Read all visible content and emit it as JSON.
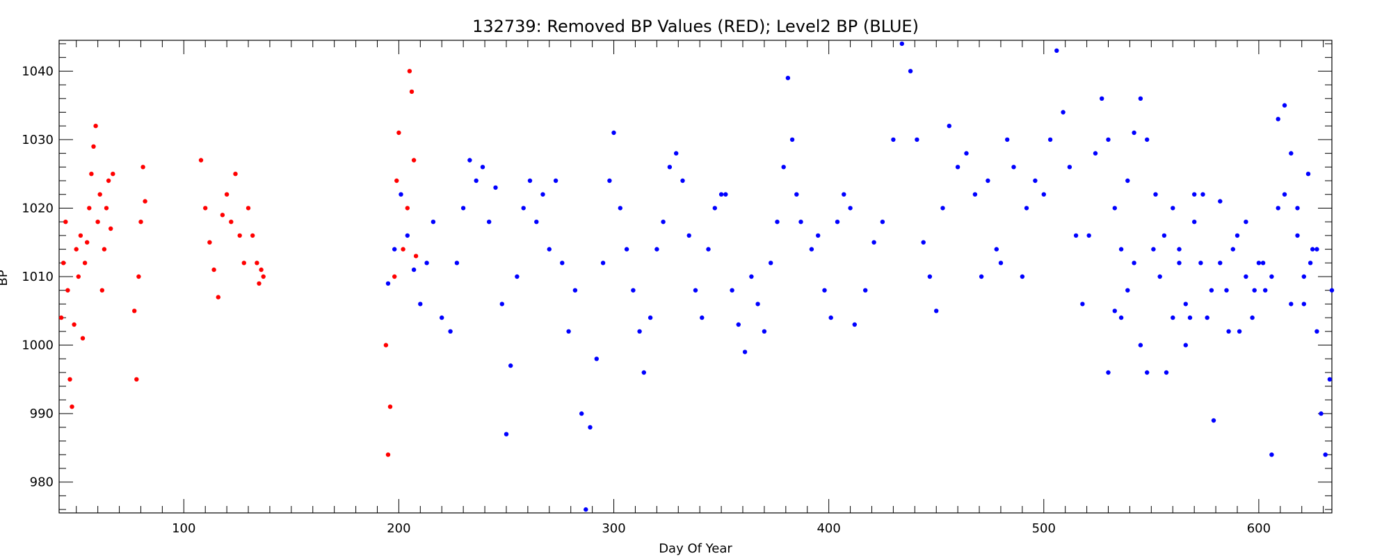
{
  "chart_data": {
    "type": "scatter",
    "title": "132739: Removed BP Values (RED); Level2 BP (BLUE)",
    "xlabel": "Day Of Year",
    "ylabel": "BP",
    "xlim": [
      42,
      634
    ],
    "ylim": [
      975.5,
      1044.5
    ],
    "xticks": [
      100,
      200,
      300,
      400,
      500,
      600
    ],
    "yticks": [
      980,
      990,
      1000,
      1010,
      1020,
      1030,
      1040
    ],
    "grid": false,
    "legend": "none",
    "series": [
      {
        "color": "#ff0000",
        "points": [
          [
            43,
            1004
          ],
          [
            44,
            1012
          ],
          [
            45,
            1018
          ],
          [
            46,
            1008
          ],
          [
            47,
            995
          ],
          [
            48,
            991
          ],
          [
            49,
            1003
          ],
          [
            50,
            1014
          ],
          [
            51,
            1010
          ],
          [
            52,
            1016
          ],
          [
            53,
            1001
          ],
          [
            54,
            1012
          ],
          [
            55,
            1015
          ],
          [
            56,
            1020
          ],
          [
            57,
            1025
          ],
          [
            58,
            1029
          ],
          [
            59,
            1032
          ],
          [
            60,
            1018
          ],
          [
            61,
            1022
          ],
          [
            62,
            1008
          ],
          [
            63,
            1014
          ],
          [
            64,
            1020
          ],
          [
            65,
            1024
          ],
          [
            66,
            1017
          ],
          [
            67,
            1025
          ],
          [
            77,
            1005
          ],
          [
            78,
            995
          ],
          [
            79,
            1010
          ],
          [
            80,
            1018
          ],
          [
            81,
            1026
          ],
          [
            82,
            1021
          ],
          [
            108,
            1027
          ],
          [
            110,
            1020
          ],
          [
            112,
            1015
          ],
          [
            114,
            1011
          ],
          [
            116,
            1007
          ],
          [
            118,
            1019
          ],
          [
            120,
            1022
          ],
          [
            122,
            1018
          ],
          [
            124,
            1025
          ],
          [
            126,
            1016
          ],
          [
            128,
            1012
          ],
          [
            130,
            1020
          ],
          [
            132,
            1016
          ],
          [
            134,
            1012
          ],
          [
            135,
            1009
          ],
          [
            136,
            1011
          ],
          [
            137,
            1010
          ],
          [
            194,
            1000
          ],
          [
            195,
            984
          ],
          [
            196,
            991
          ],
          [
            198,
            1010
          ],
          [
            199,
            1024
          ],
          [
            200,
            1031
          ],
          [
            202,
            1014
          ],
          [
            204,
            1020
          ],
          [
            205,
            1040
          ],
          [
            206,
            1037
          ],
          [
            207,
            1027
          ],
          [
            208,
            1013
          ]
        ]
      },
      {
        "color": "#0000ff",
        "points": [
          [
            195,
            1009
          ],
          [
            198,
            1014
          ],
          [
            201,
            1022
          ],
          [
            204,
            1016
          ],
          [
            207,
            1011
          ],
          [
            210,
            1006
          ],
          [
            213,
            1012
          ],
          [
            216,
            1018
          ],
          [
            220,
            1004
          ],
          [
            224,
            1002
          ],
          [
            227,
            1012
          ],
          [
            230,
            1020
          ],
          [
            233,
            1027
          ],
          [
            236,
            1024
          ],
          [
            239,
            1026
          ],
          [
            242,
            1018
          ],
          [
            245,
            1023
          ],
          [
            248,
            1006
          ],
          [
            250,
            987
          ],
          [
            252,
            997
          ],
          [
            255,
            1010
          ],
          [
            258,
            1020
          ],
          [
            261,
            1024
          ],
          [
            264,
            1018
          ],
          [
            267,
            1022
          ],
          [
            270,
            1014
          ],
          [
            273,
            1024
          ],
          [
            276,
            1012
          ],
          [
            279,
            1002
          ],
          [
            282,
            1008
          ],
          [
            285,
            990
          ],
          [
            287,
            976
          ],
          [
            289,
            988
          ],
          [
            292,
            998
          ],
          [
            295,
            1012
          ],
          [
            298,
            1024
          ],
          [
            300,
            1031
          ],
          [
            303,
            1020
          ],
          [
            306,
            1014
          ],
          [
            309,
            1008
          ],
          [
            312,
            1002
          ],
          [
            314,
            996
          ],
          [
            317,
            1004
          ],
          [
            320,
            1014
          ],
          [
            323,
            1018
          ],
          [
            326,
            1026
          ],
          [
            329,
            1028
          ],
          [
            332,
            1024
          ],
          [
            335,
            1016
          ],
          [
            338,
            1008
          ],
          [
            341,
            1004
          ],
          [
            344,
            1014
          ],
          [
            347,
            1020
          ],
          [
            350,
            1022
          ],
          [
            352,
            1022
          ],
          [
            355,
            1008
          ],
          [
            358,
            1003
          ],
          [
            361,
            999
          ],
          [
            364,
            1010
          ],
          [
            367,
            1006
          ],
          [
            370,
            1002
          ],
          [
            373,
            1012
          ],
          [
            376,
            1018
          ],
          [
            379,
            1026
          ],
          [
            381,
            1039
          ],
          [
            383,
            1030
          ],
          [
            385,
            1022
          ],
          [
            387,
            1018
          ],
          [
            392,
            1014
          ],
          [
            395,
            1016
          ],
          [
            398,
            1008
          ],
          [
            401,
            1004
          ],
          [
            404,
            1018
          ],
          [
            407,
            1022
          ],
          [
            410,
            1020
          ],
          [
            412,
            1003
          ],
          [
            417,
            1008
          ],
          [
            421,
            1015
          ],
          [
            425,
            1018
          ],
          [
            430,
            1030
          ],
          [
            434,
            1044
          ],
          [
            438,
            1040
          ],
          [
            441,
            1030
          ],
          [
            444,
            1015
          ],
          [
            447,
            1010
          ],
          [
            450,
            1005
          ],
          [
            453,
            1020
          ],
          [
            456,
            1032
          ],
          [
            460,
            1026
          ],
          [
            464,
            1028
          ],
          [
            468,
            1022
          ],
          [
            471,
            1010
          ],
          [
            474,
            1024
          ],
          [
            478,
            1014
          ],
          [
            480,
            1012
          ],
          [
            483,
            1030
          ],
          [
            486,
            1026
          ],
          [
            490,
            1010
          ],
          [
            492,
            1020
          ],
          [
            496,
            1024
          ],
          [
            500,
            1022
          ],
          [
            503,
            1030
          ],
          [
            506,
            1043
          ],
          [
            509,
            1034
          ],
          [
            512,
            1026
          ],
          [
            515,
            1016
          ],
          [
            518,
            1006
          ],
          [
            521,
            1016
          ],
          [
            524,
            1028
          ],
          [
            527,
            1036
          ],
          [
            530,
            1030
          ],
          [
            533,
            1020
          ],
          [
            536,
            1014
          ],
          [
            539,
            1024
          ],
          [
            542,
            1031
          ],
          [
            545,
            1036
          ],
          [
            548,
            1030
          ],
          [
            552,
            1022
          ],
          [
            556,
            1016
          ],
          [
            560,
            1020
          ],
          [
            563,
            1014
          ],
          [
            566,
            1006
          ],
          [
            570,
            1018
          ],
          [
            574,
            1022
          ],
          [
            578,
            1008
          ],
          [
            582,
            1012
          ],
          [
            586,
            1002
          ],
          [
            590,
            1016
          ],
          [
            594,
            1018
          ],
          [
            598,
            1008
          ],
          [
            602,
            1012
          ],
          [
            606,
            1010
          ],
          [
            609,
            1020
          ],
          [
            612,
            1022
          ],
          [
            615,
            1006
          ],
          [
            618,
            1016
          ],
          [
            621,
            1006
          ],
          [
            624,
            1012
          ],
          [
            627,
            1014
          ],
          [
            530,
            996
          ],
          [
            533,
            1005
          ],
          [
            536,
            1004
          ],
          [
            539,
            1008
          ],
          [
            542,
            1012
          ],
          [
            545,
            1000
          ],
          [
            548,
            996
          ],
          [
            551,
            1014
          ],
          [
            554,
            1010
          ],
          [
            557,
            996
          ],
          [
            560,
            1004
          ],
          [
            563,
            1012
          ],
          [
            566,
            1000
          ],
          [
            568,
            1004
          ],
          [
            570,
            1022
          ],
          [
            573,
            1012
          ],
          [
            576,
            1004
          ],
          [
            579,
            989
          ],
          [
            582,
            1021
          ],
          [
            585,
            1008
          ],
          [
            588,
            1014
          ],
          [
            591,
            1002
          ],
          [
            594,
            1010
          ],
          [
            597,
            1004
          ],
          [
            600,
            1012
          ],
          [
            603,
            1008
          ],
          [
            606,
            984
          ],
          [
            609,
            1033
          ],
          [
            612,
            1035
          ],
          [
            615,
            1028
          ],
          [
            618,
            1020
          ],
          [
            621,
            1010
          ],
          [
            623,
            1025
          ],
          [
            625,
            1014
          ],
          [
            627,
            1002
          ],
          [
            629,
            990
          ],
          [
            631,
            984
          ],
          [
            633,
            995
          ],
          [
            634,
            1008
          ]
        ]
      }
    ]
  }
}
